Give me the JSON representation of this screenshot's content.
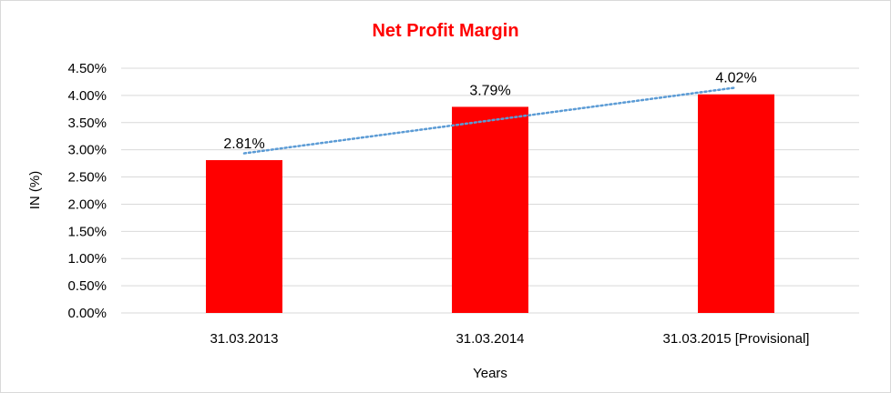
{
  "chart_data": {
    "type": "bar",
    "title": "Net Profit Margin",
    "xlabel": "Years",
    "ylabel": "IN (%)",
    "categories": [
      "31.03.2013",
      "31.03.2014",
      "31.03.2015 [Provisional]"
    ],
    "series": [
      {
        "values": [
          2.81,
          3.79,
          4.02
        ]
      }
    ],
    "data_labels": [
      "2.81%",
      "3.79%",
      "4.02%"
    ],
    "ylim": [
      0,
      4.5
    ],
    "yticks": [
      0,
      0.5,
      1.0,
      1.5,
      2.0,
      2.5,
      3.0,
      3.5,
      4.0,
      4.5
    ],
    "ytick_labels": [
      "0.00%",
      "0.50%",
      "1.00%",
      "1.50%",
      "2.00%",
      "2.50%",
      "3.00%",
      "3.50%",
      "4.00%",
      "4.50%"
    ],
    "trendline": "linear, dotted",
    "grid": true,
    "legend": "none",
    "colors": {
      "bar": "#ff0000",
      "title": "#ff0000",
      "trendline": "#5b9bd5",
      "grid": "#d9d9d9"
    }
  }
}
